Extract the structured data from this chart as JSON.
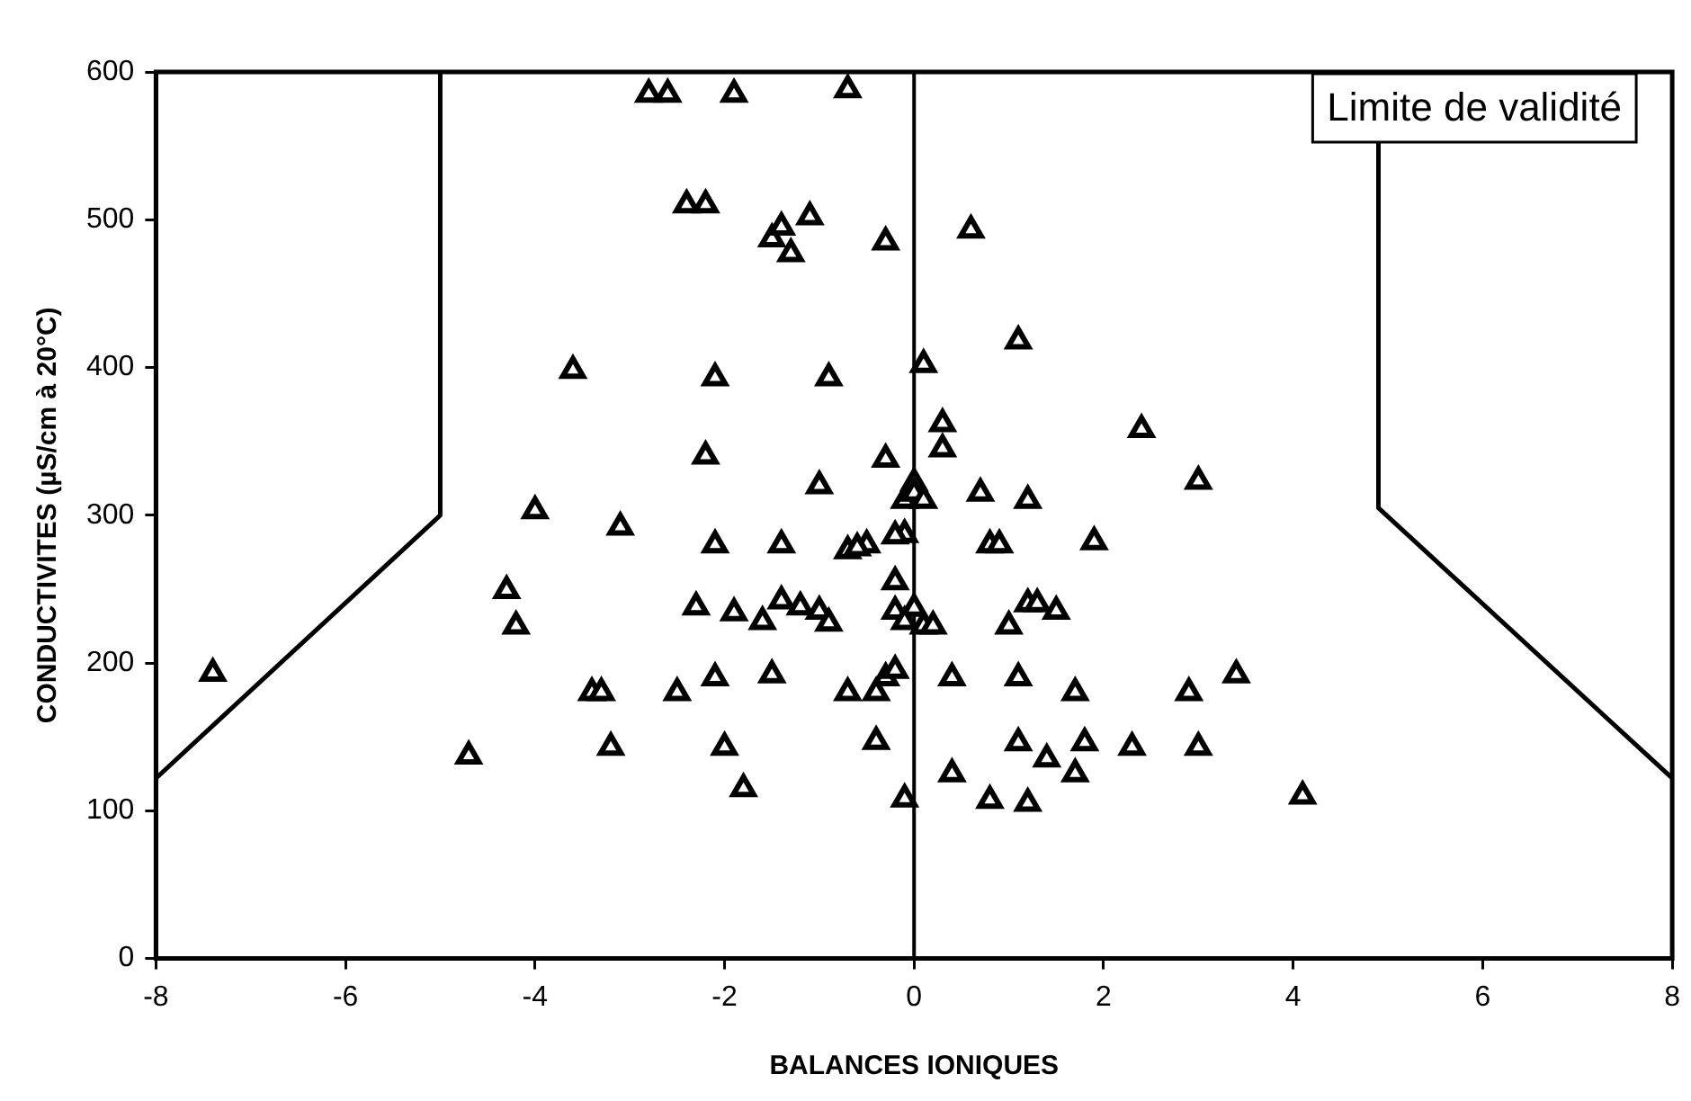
{
  "chart_data": {
    "type": "scatter",
    "xlabel": "BALANCES IONIQUES",
    "ylabel": "CONDUCTIVITES (µS/cm à 20°C)",
    "xlim": [
      -8,
      8
    ],
    "xticks": [
      -8,
      -6,
      -4,
      -2,
      0,
      2,
      4,
      6,
      8
    ],
    "ylim": [
      0,
      600
    ],
    "yticks": [
      0,
      100,
      200,
      300,
      400,
      500,
      600
    ],
    "grid": false,
    "legend": false,
    "marker": "triangle",
    "series": [
      {
        "color": "#000000",
        "x": [
          -2.8,
          -2.6,
          -1.9,
          -0.7,
          -2.4,
          -2.2,
          -1.5,
          -1.4,
          -1.3,
          -1.1,
          -0.3,
          0.6,
          -3.6,
          -2.1,
          -0.9,
          0.1,
          1.1,
          -2.2,
          -0.3,
          0.3,
          0.3,
          2.4,
          -1.0,
          -0.1,
          0,
          0,
          0.1,
          0.7,
          1.2,
          3.0,
          -4.0,
          -3.1,
          -2.1,
          -1.4,
          -0.7,
          -0.5,
          -0.6,
          -0.1,
          -0.2,
          0.8,
          0.9,
          1.9,
          -4.3,
          -4.2,
          -2.3,
          -1.9,
          -1.6,
          -1.4,
          -1.2,
          -1.0,
          -0.9,
          -0.2,
          -0.2,
          0,
          -0.1,
          0.1,
          0.2,
          1.0,
          1.2,
          1.3,
          1.5,
          -7.4,
          -3.4,
          -3.3,
          -2.5,
          -2.1,
          -1.5,
          -0.7,
          -0.4,
          -0.3,
          -0.2,
          0.4,
          1.1,
          1.7,
          2.9,
          3.4,
          -4.7,
          -3.2,
          -2.0,
          -0.4,
          -1.8,
          -0.1,
          0.4,
          0.8,
          1.1,
          1.4,
          1.7,
          1.8,
          2.3,
          3.0,
          1.2,
          4.1
        ],
        "values": [
          585,
          585,
          585,
          588,
          510,
          510,
          487,
          495,
          477,
          502,
          485,
          493,
          398,
          393,
          393,
          402,
          418,
          340,
          338,
          362,
          345,
          358,
          320,
          310,
          322,
          315,
          310,
          315,
          310,
          323,
          303,
          292,
          280,
          280,
          276,
          280,
          278,
          287,
          286,
          280,
          280,
          282,
          249,
          225,
          238,
          234,
          228,
          242,
          238,
          235,
          227,
          255,
          235,
          237,
          228,
          225,
          225,
          225,
          240,
          240,
          235,
          193,
          180,
          180,
          180,
          190,
          192,
          180,
          180,
          190,
          195,
          190,
          190,
          180,
          180,
          192,
          137,
          143,
          143,
          147,
          115,
          108,
          125,
          107,
          146,
          135,
          125,
          146,
          143,
          143,
          105,
          110
        ]
      },
      {
        "type": "line",
        "color": "#000000",
        "marker": "none",
        "line_style": "solid",
        "x": [
          -8,
          -5,
          -5
        ],
        "values": [
          122,
          300,
          600
        ]
      },
      {
        "type": "line",
        "color": "#000000",
        "marker": "none",
        "line_style": "solid",
        "x": [
          4.9,
          4.9,
          8
        ],
        "values": [
          600,
          305,
          122
        ]
      }
    ],
    "ref_lines": [
      {
        "axis": "x",
        "value": 0,
        "label": null,
        "color": "#000000"
      }
    ],
    "annotations": [
      "Limite de validité"
    ]
  }
}
